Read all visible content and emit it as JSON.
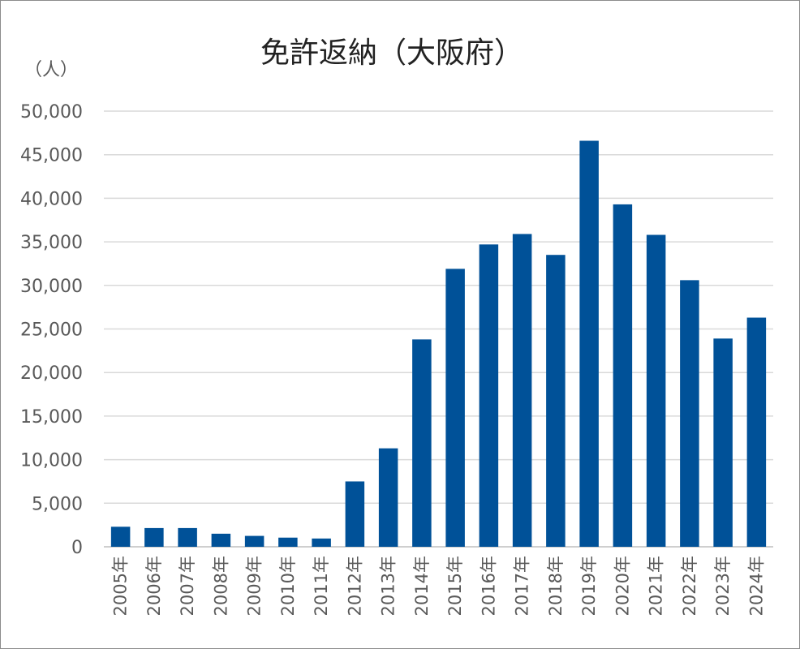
{
  "chart_data": {
    "type": "bar",
    "title": "免許返納（大阪府）",
    "ylabel": "（人）",
    "xlabel": "",
    "categories": [
      "2005年",
      "2006年",
      "2007年",
      "2008年",
      "2009年",
      "2010年",
      "2011年",
      "2012年",
      "2013年",
      "2014年",
      "2015年",
      "2016年",
      "2017年",
      "2018年",
      "2019年",
      "2020年",
      "2021年",
      "2022年",
      "2023年",
      "2024年"
    ],
    "values": [
      2300,
      2150,
      2150,
      1500,
      1250,
      1050,
      950,
      7500,
      11300,
      23800,
      31900,
      34700,
      35900,
      33500,
      46600,
      39300,
      35800,
      30600,
      23900,
      26300
    ],
    "ylim": [
      0,
      50000
    ],
    "yticks": [
      0,
      5000,
      10000,
      15000,
      20000,
      25000,
      30000,
      35000,
      40000,
      45000,
      50000
    ],
    "ytick_labels": [
      "0",
      "5,000",
      "10,000",
      "15,000",
      "20,000",
      "25,000",
      "30,000",
      "35,000",
      "40,000",
      "45,000",
      "50,000"
    ],
    "grid": true,
    "legend": "none",
    "bar_color": "#005198"
  }
}
